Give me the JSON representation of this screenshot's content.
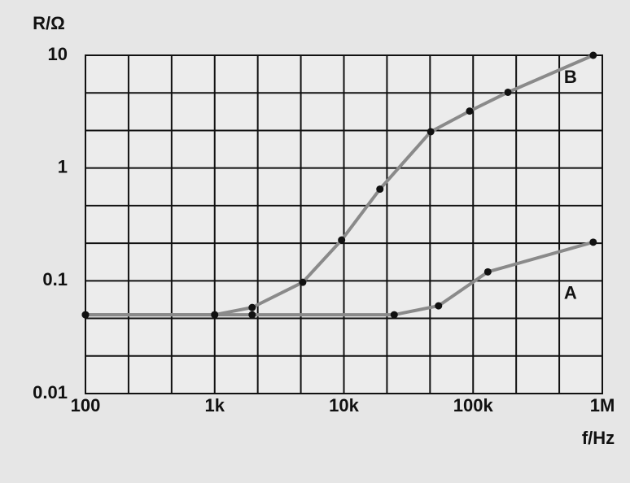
{
  "chart_data": {
    "type": "line",
    "log_x": true,
    "log_y": true,
    "grid": true,
    "ylabel": "R/Ω",
    "xlabel": "f/Hz",
    "xlim": [
      100,
      1000000
    ],
    "xticks": [
      {
        "value": 100,
        "label": "100"
      },
      {
        "value": 1000,
        "label": "1k"
      },
      {
        "value": 10000,
        "label": "10k"
      },
      {
        "value": 100000,
        "label": "100k"
      },
      {
        "value": 1000000,
        "label": "1M"
      }
    ],
    "ylim": [
      0.01,
      10
    ],
    "yticks": [
      0.01,
      0.1,
      1,
      10
    ],
    "series": [
      {
        "name": "A",
        "color": "#8a8a8a",
        "x": [
          100,
          1000,
          1950,
          24500,
          54000,
          130000,
          850000
        ],
        "values": [
          0.05,
          0.05,
          0.05,
          0.05,
          0.06,
          0.12,
          0.22
        ]
      },
      {
        "name": "B",
        "color": "#8a8a8a",
        "x": [
          100,
          1000,
          1950,
          4800,
          9600,
          19000,
          47000,
          94000,
          186000,
          850000
        ],
        "values": [
          0.05,
          0.05,
          0.058,
          0.097,
          0.23,
          0.65,
          2.1,
          3.2,
          4.7,
          10
        ]
      }
    ]
  }
}
